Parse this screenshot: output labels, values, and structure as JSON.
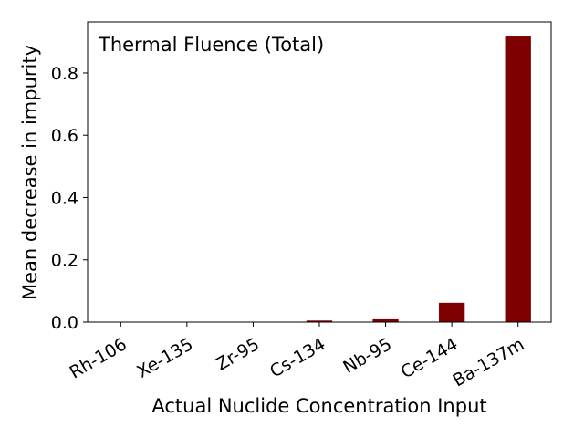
{
  "chart_data": {
    "type": "bar",
    "annotation": "Thermal Fluence (Total)",
    "x_label": "Actual Nuclide Concentration Input",
    "y_label": "Mean decrease in impurity",
    "categories": [
      "Rh-106",
      "Xe-135",
      "Zr-95",
      "Cs-134",
      "Nb-95",
      "Ce-144",
      "Ba-137m"
    ],
    "values": [
      0,
      0,
      0,
      0.005,
      0.009,
      0.062,
      0.917
    ],
    "color": "#7f0000",
    "ylim": [
      0,
      0.964
    ],
    "yticks": [
      {
        "value": 0,
        "label": "0.0"
      },
      0.2,
      0.4,
      0.6,
      0.8
    ],
    "grid": false
  }
}
